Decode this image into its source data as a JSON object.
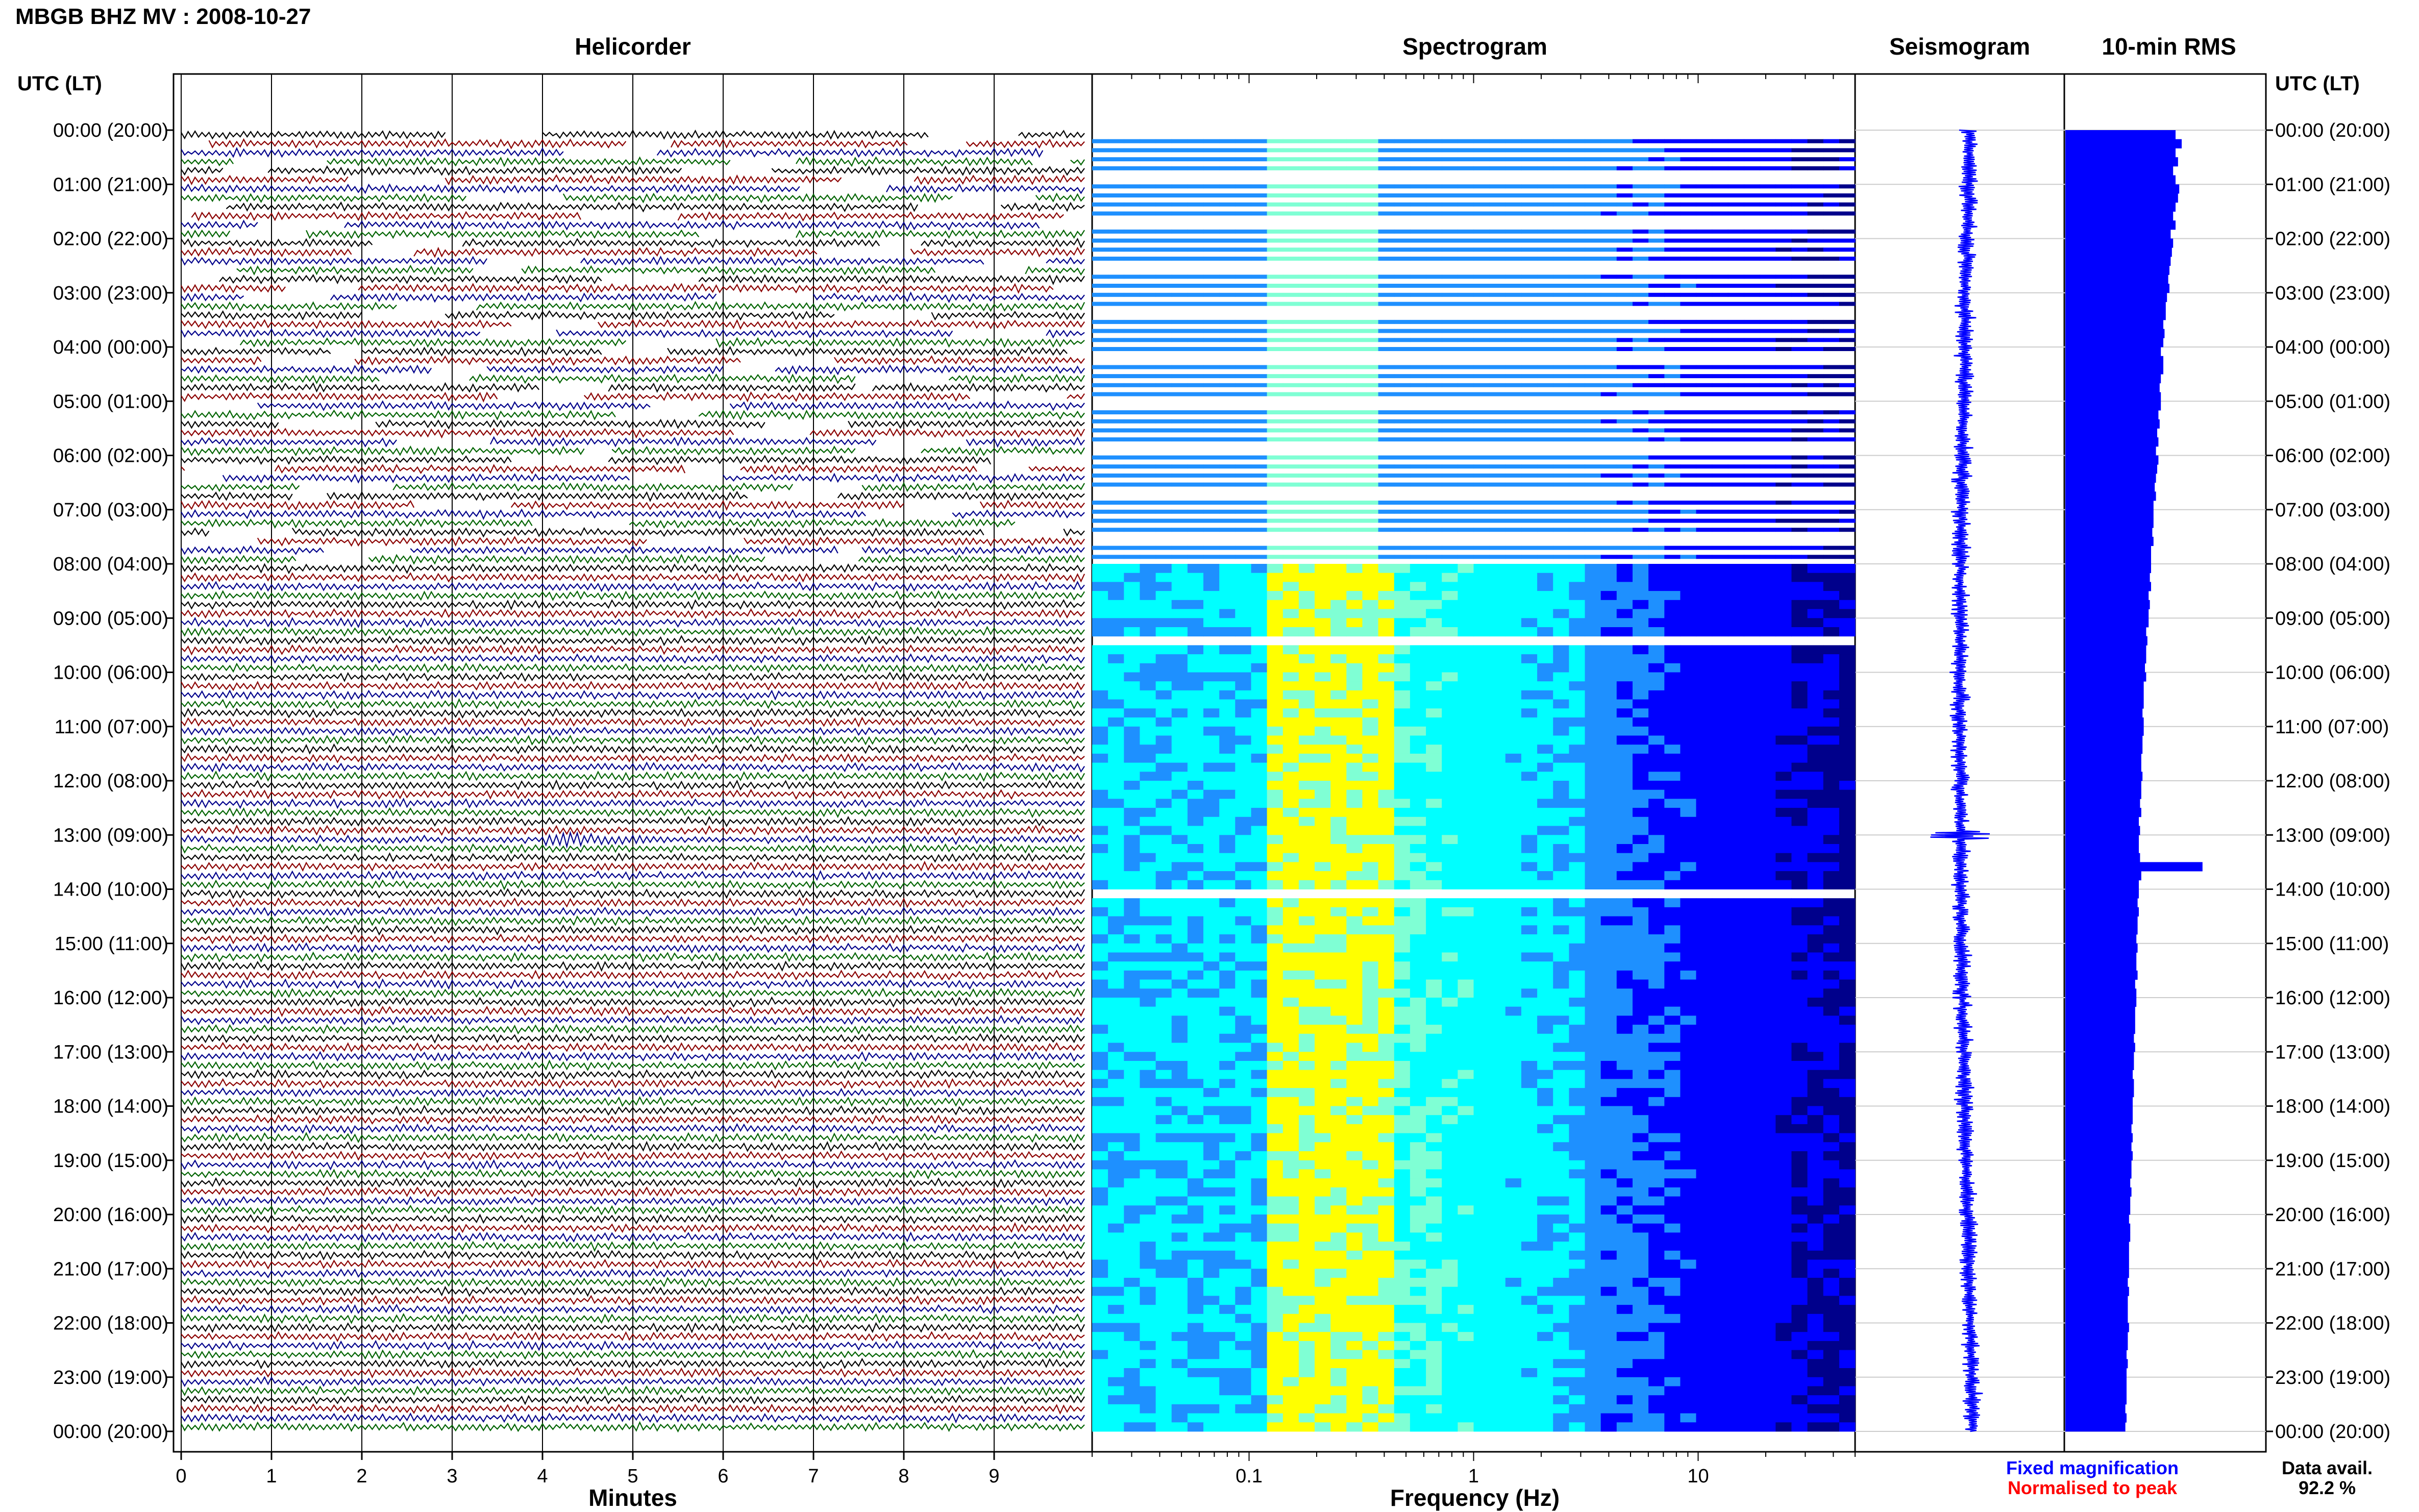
{
  "header": {
    "title": "MBGB BHZ MV : 2008-10-27"
  },
  "panels": {
    "helicorder": "Helicorder",
    "spectrogram": "Spectrogram",
    "seismogram": "Seismogram",
    "rms": "10-min RMS"
  },
  "axes": {
    "time_header": "UTC (LT)",
    "minutes_label": "Minutes",
    "frequency_label": "Frequency (Hz)"
  },
  "legend": {
    "fixed": "Fixed magnification",
    "normalised": "Normalised to peak",
    "fixed_color": "#0000ff",
    "normalised_color": "#ff0000"
  },
  "availability": {
    "label": "Data avail.",
    "value": "92.2 %"
  },
  "colors": {
    "trace_colors": [
      "#000000",
      "#8b0000",
      "#00008b",
      "#006400"
    ],
    "seismogram": "#0000ff",
    "rms": "#0000ff"
  },
  "chart_data": [
    {
      "type": "line",
      "name": "helicorder",
      "title": "Helicorder",
      "xlabel": "Minutes",
      "x_ticks": [
        "0",
        "1",
        "2",
        "3",
        "4",
        "5",
        "6",
        "7",
        "8",
        "9"
      ],
      "xlim": [
        0,
        10
      ],
      "rows_per_hour": 6,
      "hours": 24,
      "y_tick_labels": [
        "00:00 (20:00)",
        "01:00 (21:00)",
        "02:00 (22:00)",
        "03:00 (23:00)",
        "04:00 (00:00)",
        "05:00 (01:00)",
        "06:00 (02:00)",
        "07:00 (03:00)",
        "08:00 (04:00)",
        "09:00 (05:00)",
        "10:00 (06:00)",
        "11:00 (07:00)",
        "12:00 (08:00)",
        "13:00 (09:00)",
        "14:00 (10:00)",
        "15:00 (11:00)",
        "16:00 (12:00)",
        "17:00 (13:00)",
        "18:00 (14:00)",
        "19:00 (15:00)",
        "20:00 (16:00)",
        "21:00 (17:00)",
        "22:00 (18:00)",
        "23:00 (19:00)",
        "00:00 (20:00)"
      ],
      "gaps_until_hour": 8,
      "event": {
        "hour": 13,
        "start_min": 4.0,
        "end_min": 6.5
      }
    },
    {
      "type": "heatmap",
      "name": "spectrogram",
      "title": "Spectrogram",
      "xlabel": "Frequency (Hz)",
      "x_scale": "log",
      "xlim": [
        0.02,
        50
      ],
      "x_ticks": [
        "0.1",
        "1",
        "10"
      ],
      "colormap": [
        "#00008b",
        "#0000ff",
        "#1e90ff",
        "#00ffff",
        "#7fffd4",
        "#ffff00"
      ],
      "peak_band_hz": [
        0.15,
        0.4
      ]
    },
    {
      "type": "line",
      "name": "seismogram",
      "title": "Seismogram",
      "event_hour": 13
    },
    {
      "type": "bar",
      "name": "10-min RMS",
      "title": "10-min RMS",
      "orientation": "horizontal",
      "values": [
        0.9,
        0.95,
        0.9,
        0.92,
        0.88,
        0.9,
        0.93,
        0.92,
        0.9,
        0.88,
        0.9,
        0.86,
        0.88,
        0.87,
        0.86,
        0.85,
        0.84,
        0.85,
        0.83,
        0.82,
        0.82,
        0.8,
        0.81,
        0.8,
        0.78,
        0.8,
        0.8,
        0.78,
        0.77,
        0.78,
        0.78,
        0.76,
        0.77,
        0.75,
        0.76,
        0.74,
        0.76,
        0.75,
        0.74,
        0.73,
        0.74,
        0.72,
        0.72,
        0.72,
        0.71,
        0.72,
        0.7,
        0.7,
        0.7,
        0.69,
        0.7,
        0.68,
        0.69,
        0.68,
        0.68,
        0.66,
        0.67,
        0.66,
        0.66,
        0.65,
        0.66,
        0.64,
        0.64,
        0.64,
        0.63,
        0.64,
        0.64,
        0.63,
        0.63,
        0.62,
        0.62,
        0.63,
        0.62,
        0.62,
        0.61,
        0.62,
        0.6,
        0.61,
        0.6,
        0.6,
        0.61,
        1.12,
        0.62,
        0.6,
        0.6,
        0.59,
        0.6,
        0.59,
        0.59,
        0.58,
        0.59,
        0.58,
        0.58,
        0.59,
        0.57,
        0.58,
        0.58,
        0.57,
        0.57,
        0.57,
        0.56,
        0.57,
        0.56,
        0.56,
        0.55,
        0.56,
        0.56,
        0.55,
        0.55,
        0.55,
        0.54,
        0.55,
        0.54,
        0.55,
        0.54,
        0.54,
        0.53,
        0.54,
        0.53,
        0.53,
        0.52,
        0.53,
        0.53,
        0.52,
        0.52,
        0.52,
        0.52,
        0.51,
        0.52,
        0.51,
        0.51,
        0.51,
        0.52,
        0.51,
        0.51,
        0.5,
        0.51,
        0.5,
        0.5,
        0.5,
        0.5,
        0.49,
        0.5,
        0.49
      ],
      "xlim": [
        0,
        1.3
      ]
    }
  ]
}
